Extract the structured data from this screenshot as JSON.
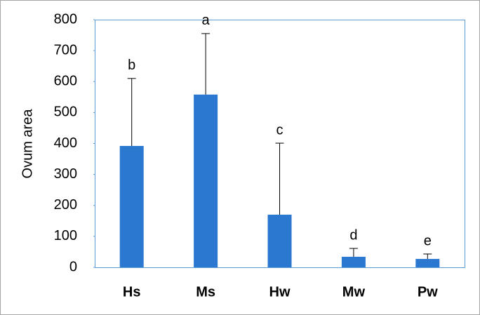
{
  "chart_data": {
    "type": "bar",
    "ylabel": "Ovum area",
    "categories": [
      "Hs",
      "Ms",
      "Hw",
      "Mw",
      "Pw"
    ],
    "values": [
      392,
      558,
      170,
      34,
      27
    ],
    "errors": [
      218,
      197,
      231,
      27,
      16
    ],
    "annotations": [
      "b",
      "a",
      "c",
      "d",
      "e"
    ],
    "color": "#2a78cf",
    "ylim": [
      0,
      800
    ],
    "yticks": [
      0,
      100,
      200,
      300,
      400,
      500,
      600,
      700,
      800
    ]
  }
}
